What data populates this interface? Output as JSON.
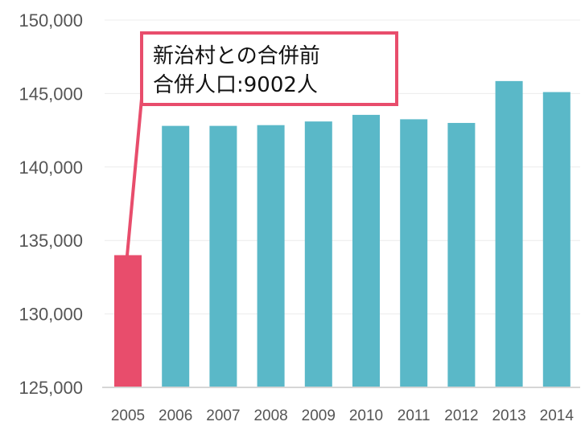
{
  "chart_data": {
    "type": "bar",
    "categories": [
      "2005",
      "2006",
      "2007",
      "2008",
      "2009",
      "2010",
      "2011",
      "2012",
      "2013",
      "2014"
    ],
    "values": [
      134000,
      142800,
      142800,
      142850,
      143100,
      143550,
      143250,
      143000,
      145850,
      145100
    ],
    "ylim": [
      125000,
      150000
    ],
    "yticks": [
      "125,000",
      "130,000",
      "135,000",
      "140,000",
      "145,000",
      "150,000"
    ],
    "grid": true,
    "colors": {
      "default": "#5ab8c8",
      "highlight": "#e84d6c",
      "callout_border": "#e84d6c"
    },
    "highlight_index": 0,
    "annotation": {
      "lines": [
        "新治村との合併前",
        "合併人口:9002人"
      ]
    }
  }
}
